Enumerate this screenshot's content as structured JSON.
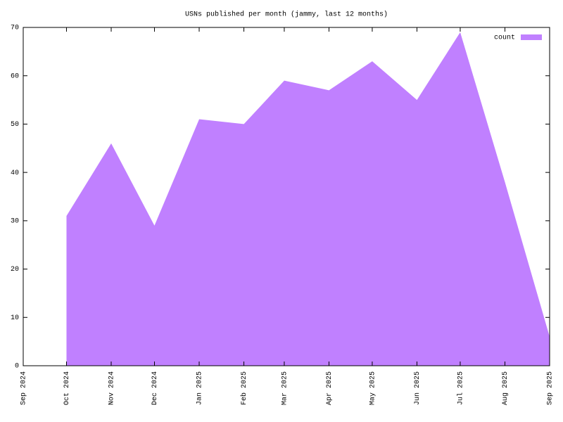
{
  "chart_data": {
    "type": "area",
    "title": "USNs published per month (jammy, last 12 months)",
    "x": [
      "Oct 2024",
      "Nov 2024",
      "Dec 2024",
      "Jan 2025",
      "Feb 2025",
      "Mar 2025",
      "Apr 2025",
      "May 2025",
      "Jun 2025",
      "Jul 2025",
      "Aug 2025",
      "Sep 2025"
    ],
    "series": [
      {
        "name": "count",
        "color": "#c080ff",
        "values": [
          31,
          46,
          29,
          51,
          50,
          59,
          57,
          63,
          55,
          69,
          38,
          6
        ]
      }
    ],
    "xlim": [
      "Sep 2024",
      "Sep 2025"
    ],
    "xticks": [
      "Sep 2024",
      "Oct 2024",
      "Nov 2024",
      "Dec 2024",
      "Jan 2025",
      "Feb 2025",
      "Mar 2025",
      "Apr 2025",
      "May 2025",
      "Jun 2025",
      "Jul 2025",
      "Aug 2025",
      "Sep 2025"
    ],
    "ylim": [
      0,
      70
    ],
    "yticks": [
      0,
      10,
      20,
      30,
      40,
      50,
      60,
      70
    ],
    "legend": "top-right"
  }
}
